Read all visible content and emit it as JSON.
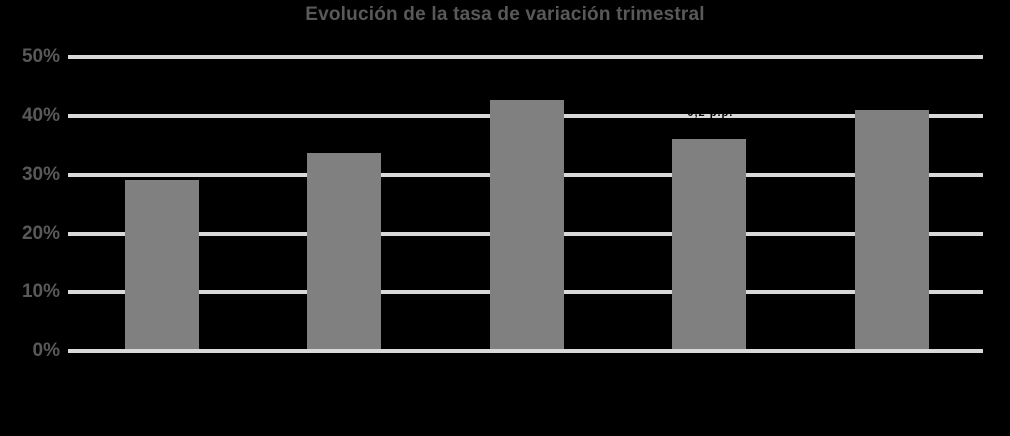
{
  "title": "Evolución de la tasa de variación trimestral",
  "colors": {
    "background": "#000000",
    "bar": "#808080",
    "gridline": "#D9D9D9",
    "axis_text": "#595959",
    "annotation_text": "#000000"
  },
  "chart_data": {
    "type": "bar",
    "title": "Evolución de la tasa de variación trimestral",
    "categories": [
      "",
      "",
      "",
      "",
      ""
    ],
    "values": [
      29.2,
      33.8,
      42.7,
      36.1,
      41.0
    ],
    "unit": "%",
    "series_name": "Tasa de variación trimestral",
    "xlabel": "",
    "ylabel": "",
    "ylim": [
      0,
      50
    ],
    "y_ticks": [
      0,
      10,
      20,
      30,
      40,
      50
    ],
    "y_tick_labels": [
      "0%",
      "10%",
      "20%",
      "30%",
      "40%",
      "50%"
    ],
    "x_tick_labels_visible": false,
    "grid": true,
    "legend": "none",
    "annotation": {
      "text": "-0,2 p.p.",
      "note": "tiny near-black label, barely legible, sits on the 40% gridline above the fourth bar"
    }
  }
}
